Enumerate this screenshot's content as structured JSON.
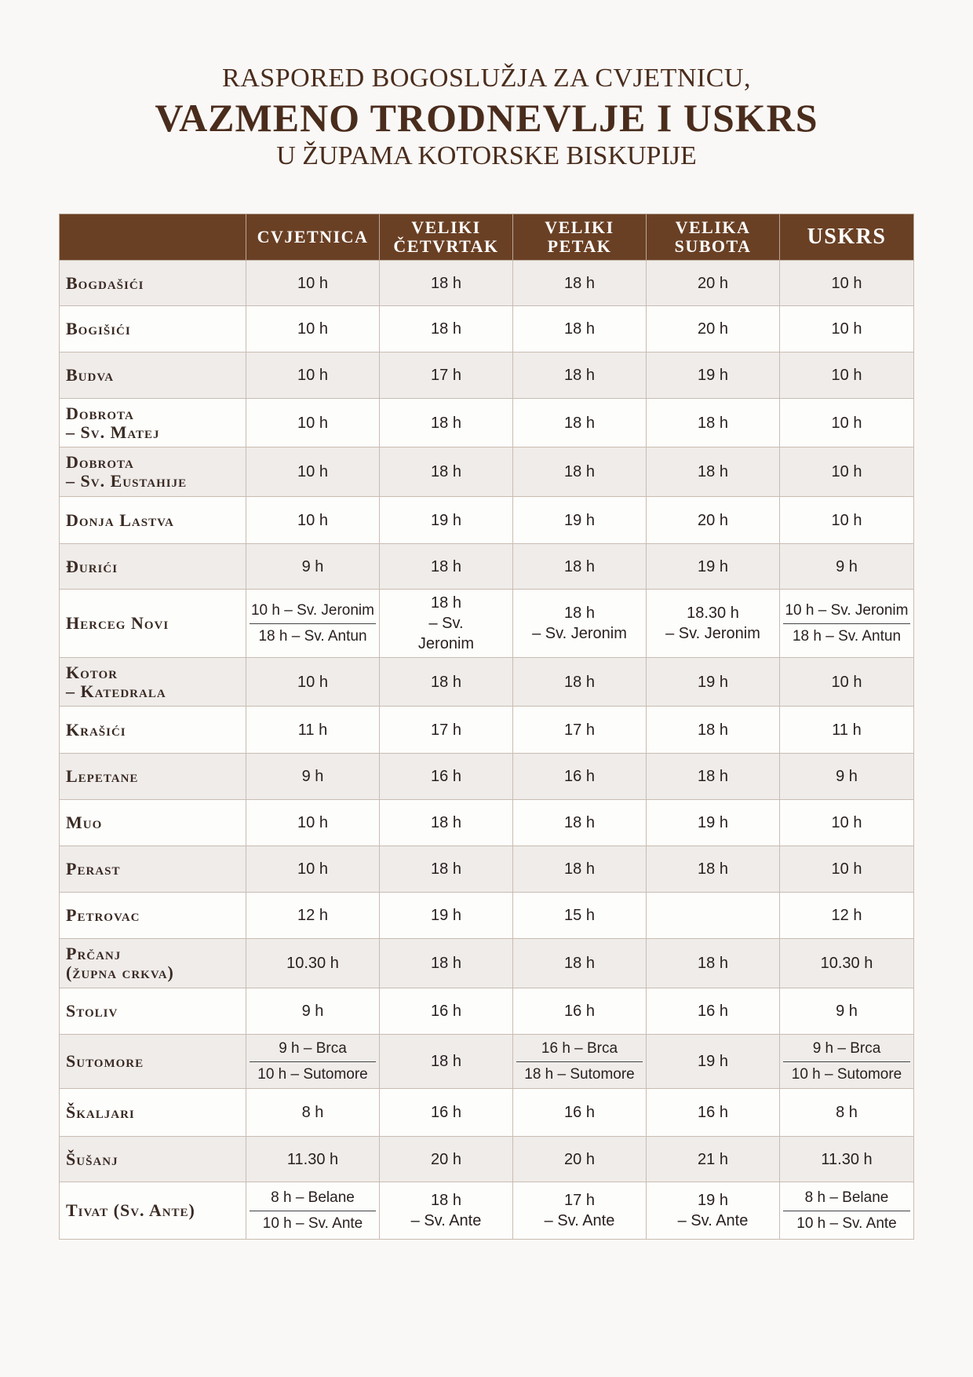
{
  "title": {
    "line1": "RASPORED BOGOSLUŽJA ZA CVJETNICU,",
    "line2": "VAZMENO TRODNEVLJE I USKRS",
    "line3": "U ŽUPAMA KOTORSKE BISKUPIJE"
  },
  "colors": {
    "header": "#6a4024",
    "title": "#4a2c1c",
    "row_alt": "#efecea"
  },
  "columns": [
    "",
    "CVJETNICA",
    "VELIKI ČETVRTAK",
    "VELIKI PETAK",
    "VELIKA SUBOTA",
    "USKRS"
  ],
  "rows": [
    {
      "name": "Bogdašići",
      "cells": [
        "10 h",
        "18 h",
        "18 h",
        "20 h",
        "10 h"
      ]
    },
    {
      "name": "Bogišići",
      "cells": [
        "10 h",
        "18 h",
        "18 h",
        "20 h",
        "10 h"
      ]
    },
    {
      "name": "Budva",
      "cells": [
        "10 h",
        "17 h",
        "18 h",
        "19 h",
        "10 h"
      ]
    },
    {
      "name": "Dobrota\n– Sv. Matej",
      "cells": [
        "10 h",
        "18 h",
        "18 h",
        "18 h",
        "10 h"
      ]
    },
    {
      "name": "Dobrota\n– Sv. Eustahije",
      "cells": [
        "10 h",
        "18 h",
        "18 h",
        "18 h",
        "10 h"
      ]
    },
    {
      "name": "Donja Lastva",
      "cells": [
        "10 h",
        "19 h",
        "19 h",
        "20 h",
        "10 h"
      ]
    },
    {
      "name": "Đurići",
      "cells": [
        "9 h",
        "18 h",
        "18 h",
        "19 h",
        "9 h"
      ]
    },
    {
      "name": "Herceg Novi",
      "cells": [
        {
          "top": "10 h – Sv. Jeronim",
          "bottom": "18 h – Sv. Antun"
        },
        "18 h\n– Sv.\nJeronim",
        "18 h\n– Sv. Jeronim",
        "18.30 h\n– Sv. Jeronim",
        {
          "top": "10 h – Sv. Jeronim",
          "bottom": "18 h – Sv. Antun"
        }
      ]
    },
    {
      "name": "Kotor\n– Katedrala",
      "cells": [
        "10 h",
        "18 h",
        "18 h",
        "19 h",
        "10 h"
      ]
    },
    {
      "name": "Krašići",
      "cells": [
        "11 h",
        "17 h",
        "17 h",
        "18 h",
        "11 h"
      ]
    },
    {
      "name": "Lepetane",
      "cells": [
        "9 h",
        "16 h",
        "16 h",
        "18 h",
        "9 h"
      ]
    },
    {
      "name": "Muo",
      "cells": [
        "10 h",
        "18 h",
        "18 h",
        "19 h",
        "10 h"
      ]
    },
    {
      "name": "Perast",
      "cells": [
        "10 h",
        "18 h",
        "18 h",
        "18 h",
        "10 h"
      ]
    },
    {
      "name": "Petrovac",
      "cells": [
        "12 h",
        "19 h",
        "15 h",
        "",
        "12 h"
      ]
    },
    {
      "name": "Prčanj\n(župna crkva)",
      "cells": [
        "10.30 h",
        "18 h",
        "18 h",
        "18 h",
        "10.30 h"
      ]
    },
    {
      "name": "Stoliv",
      "cells": [
        "9 h",
        "16 h",
        "16 h",
        "16 h",
        "9 h"
      ]
    },
    {
      "name": "Sutomore",
      "cells": [
        {
          "top": "9 h – Brca",
          "bottom": "10 h – Sutomore"
        },
        "18 h",
        {
          "top": "16 h – Brca",
          "bottom": "18 h – Sutomore"
        },
        "19 h",
        {
          "top": "9 h – Brca",
          "bottom": "10 h – Sutomore"
        }
      ]
    },
    {
      "name": "Škaljari",
      "cells": [
        "8 h",
        "16 h",
        "16 h",
        "16 h",
        "8 h"
      ]
    },
    {
      "name": "Šušanj",
      "cells": [
        "11.30 h",
        "20 h",
        "20 h",
        "21 h",
        "11.30 h"
      ]
    },
    {
      "name": "Tivat (Sv. Ante)",
      "cells": [
        {
          "top": "8 h – Belane",
          "bottom": "10 h – Sv. Ante"
        },
        "18 h\n– Sv. Ante",
        "17 h\n– Sv. Ante",
        "19 h\n– Sv. Ante",
        {
          "top": "8 h – Belane",
          "bottom": "10 h – Sv. Ante"
        }
      ]
    }
  ]
}
